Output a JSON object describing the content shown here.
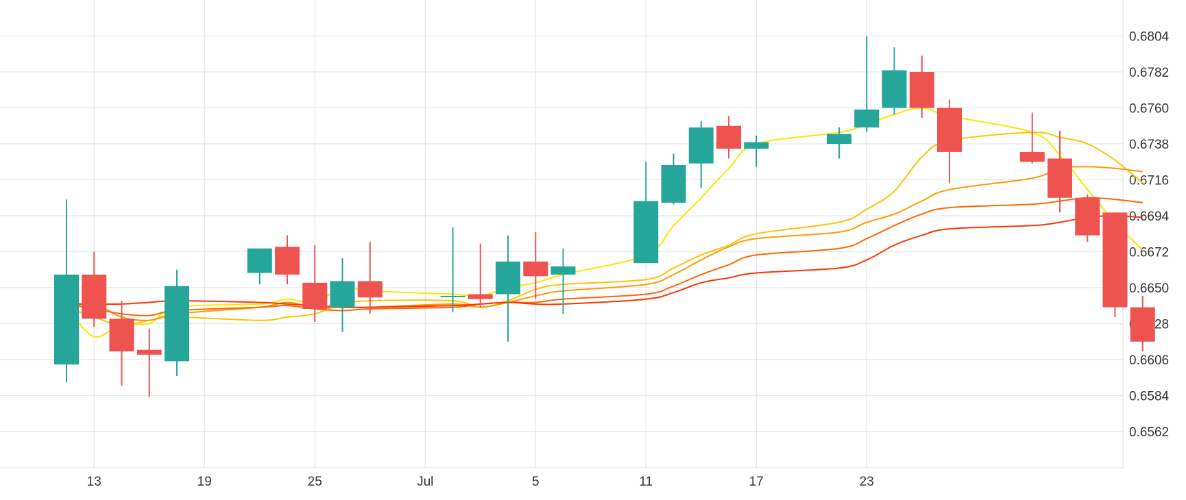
{
  "colors": {
    "up": "#26a69a",
    "down": "#ef5350",
    "grid": "#e6e6e6",
    "text": "#333333"
  },
  "chart_data": {
    "type": "candlestick",
    "title": "",
    "xlabel": "",
    "ylabel": "",
    "ylim": [
      0.654,
      0.6823
    ],
    "grid": true,
    "x_ticks": [
      "13",
      "19",
      "25",
      "Jul",
      "5",
      "11",
      "17",
      "23"
    ],
    "y_ticks": [
      "0.6804",
      "0.6782",
      "0.6760",
      "0.6738",
      "0.6716",
      "0.6694",
      "0.6672",
      "0.6650",
      "0.6628",
      "0.6606",
      "0.6584",
      "0.6562"
    ],
    "candles": [
      {
        "open": 0.6603,
        "high": 0.6704,
        "low": 0.6592,
        "close": 0.6658
      },
      {
        "open": 0.6658,
        "high": 0.6672,
        "low": 0.6626,
        "close": 0.6631
      },
      {
        "open": 0.6631,
        "high": 0.6642,
        "low": 0.659,
        "close": 0.6611
      },
      {
        "open": 0.6612,
        "high": 0.6625,
        "low": 0.6583,
        "close": 0.6609
      },
      {
        "open": 0.6605,
        "high": 0.6661,
        "low": 0.6596,
        "close": 0.6651
      },
      {
        "open": 0.6659,
        "high": 0.6674,
        "low": 0.6652,
        "close": 0.6674
      },
      {
        "open": 0.6675,
        "high": 0.6682,
        "low": 0.6652,
        "close": 0.6658
      },
      {
        "open": 0.6653,
        "high": 0.6676,
        "low": 0.6629,
        "close": 0.6637
      },
      {
        "open": 0.6638,
        "high": 0.6668,
        "low": 0.6623,
        "close": 0.6654
      },
      {
        "open": 0.6654,
        "high": 0.6678,
        "low": 0.6634,
        "close": 0.6644
      },
      {
        "open": 0.6645,
        "high": 0.6687,
        "low": 0.6635,
        "close": 0.6645
      },
      {
        "open": 0.6646,
        "high": 0.6677,
        "low": 0.6638,
        "close": 0.6643
      },
      {
        "open": 0.6646,
        "high": 0.6682,
        "low": 0.6617,
        "close": 0.6666
      },
      {
        "open": 0.6666,
        "high": 0.6684,
        "low": 0.6643,
        "close": 0.6657
      },
      {
        "open": 0.6658,
        "high": 0.6674,
        "low": 0.6634,
        "close": 0.6663
      },
      {
        "open": 0.6665,
        "high": 0.6727,
        "low": 0.6666,
        "close": 0.6703
      },
      {
        "open": 0.6702,
        "high": 0.6732,
        "low": 0.6701,
        "close": 0.6725
      },
      {
        "open": 0.6726,
        "high": 0.6752,
        "low": 0.6711,
        "close": 0.6748
      },
      {
        "open": 0.6749,
        "high": 0.6755,
        "low": 0.6729,
        "close": 0.6735
      },
      {
        "open": 0.6735,
        "high": 0.6743,
        "low": 0.6724,
        "close": 0.6739
      },
      {
        "open": 0.6738,
        "high": 0.6748,
        "low": 0.6729,
        "close": 0.6744
      },
      {
        "open": 0.6748,
        "high": 0.6804,
        "low": 0.6745,
        "close": 0.6759
      },
      {
        "open": 0.676,
        "high": 0.6797,
        "low": 0.6756,
        "close": 0.6783
      },
      {
        "open": 0.6782,
        "high": 0.6792,
        "low": 0.6754,
        "close": 0.676
      },
      {
        "open": 0.676,
        "high": 0.6765,
        "low": 0.6714,
        "close": 0.6733
      },
      {
        "open": 0.6733,
        "high": 0.6757,
        "low": 0.6726,
        "close": 0.6727
      },
      {
        "open": 0.6729,
        "high": 0.6746,
        "low": 0.6696,
        "close": 0.6705
      },
      {
        "open": 0.6705,
        "high": 0.6707,
        "low": 0.6678,
        "close": 0.6682
      },
      {
        "open": 0.6696,
        "high": 0.6696,
        "low": 0.6632,
        "close": 0.6638
      },
      {
        "open": 0.6638,
        "high": 0.6645,
        "low": 0.6611,
        "close": 0.6617
      }
    ],
    "series": [
      {
        "values": [
          0.6638,
          0.662,
          0.6628,
          0.6628,
          0.6638,
          0.664,
          0.6643,
          0.6641,
          0.665,
          0.6648,
          0.6646,
          0.6645,
          0.665,
          0.6653,
          0.6658,
          0.667,
          0.6688,
          0.6705,
          0.6723,
          0.6738,
          0.6745,
          0.675,
          0.6756,
          0.676,
          0.6755,
          0.6745,
          0.6731,
          0.671,
          0.669,
          0.6673
        ],
        "color": "#ffe400"
      },
      {
        "values": [
          0.6638,
          0.6632,
          0.6627,
          0.663,
          0.6632,
          0.663,
          0.6632,
          0.6634,
          0.664,
          0.6642,
          0.6642,
          0.6638,
          0.6642,
          0.6649,
          0.6652,
          0.6655,
          0.6662,
          0.667,
          0.6676,
          0.6683,
          0.669,
          0.6698,
          0.6709,
          0.673,
          0.674,
          0.6745,
          0.6742,
          0.6738,
          0.6728,
          0.6714
        ],
        "color": "#ffc200"
      },
      {
        "values": [
          0.6638,
          0.664,
          0.6632,
          0.663,
          0.6634,
          0.6638,
          0.6641,
          0.6638,
          0.6638,
          0.6638,
          0.664,
          0.6638,
          0.6641,
          0.6645,
          0.6648,
          0.6652,
          0.6658,
          0.6667,
          0.6675,
          0.668,
          0.6684,
          0.669,
          0.6695,
          0.6703,
          0.671,
          0.6717,
          0.6723,
          0.6724,
          0.6723,
          0.6721
        ],
        "color": "#ff9a00"
      },
      {
        "values": [
          0.664,
          0.6637,
          0.6634,
          0.6633,
          0.6636,
          0.6638,
          0.6639,
          0.6637,
          0.6636,
          0.6637,
          0.6638,
          0.664,
          0.6641,
          0.6641,
          0.6643,
          0.6646,
          0.6651,
          0.6658,
          0.6664,
          0.667,
          0.6674,
          0.668,
          0.6688,
          0.6695,
          0.6699,
          0.6701,
          0.6703,
          0.6705,
          0.6704,
          0.6702
        ],
        "color": "#ff6600"
      },
      {
        "values": [
          0.664,
          0.664,
          0.664,
          0.6641,
          0.6642,
          0.6641,
          0.664,
          0.6639,
          0.6638,
          0.6638,
          0.6639,
          0.664,
          0.6641,
          0.664,
          0.664,
          0.6643,
          0.6647,
          0.6653,
          0.6656,
          0.6659,
          0.6662,
          0.6667,
          0.6676,
          0.6682,
          0.6686,
          0.6688,
          0.669,
          0.6693,
          0.6694,
          0.6693
        ],
        "color": "#ff3300"
      }
    ]
  }
}
